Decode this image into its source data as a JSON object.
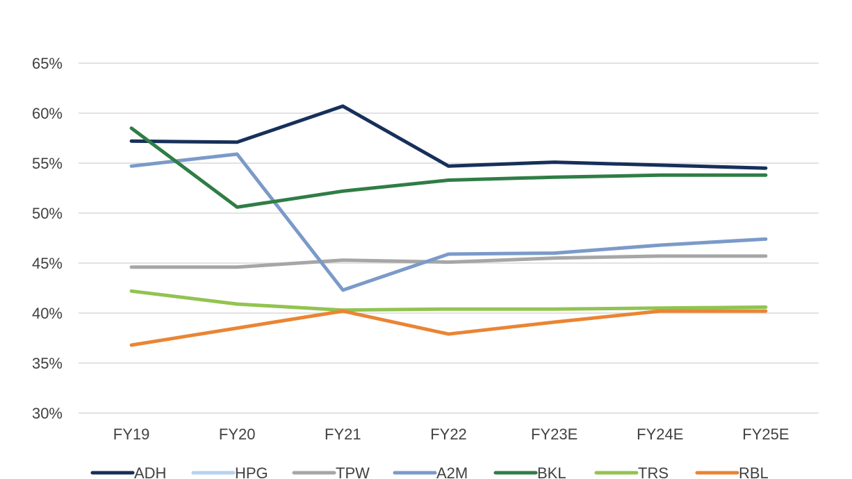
{
  "chart_data": {
    "type": "line",
    "title_fragment": "",
    "categories": [
      "FY19",
      "FY20",
      "FY21",
      "FY22",
      "FY23E",
      "FY24E",
      "FY25E"
    ],
    "ylim": [
      30,
      65
    ],
    "yticks": [
      "65%",
      "60%",
      "55%",
      "50%",
      "45%",
      "40%",
      "35%",
      "30%"
    ],
    "ytick_values": [
      65,
      60,
      55,
      50,
      45,
      40,
      35,
      30
    ],
    "grid": true,
    "legend_position": "bottom",
    "series": [
      {
        "name": "ADH",
        "color": "#17305a",
        "values": [
          57.2,
          57.1,
          60.7,
          54.7,
          55.1,
          54.8,
          54.5
        ]
      },
      {
        "name": "HPG",
        "color": "#b5d3f0",
        "values": [
          null,
          null,
          null,
          null,
          null,
          null,
          null
        ]
      },
      {
        "name": "TPW",
        "color": "#a6a6a6",
        "values": [
          44.6,
          44.6,
          45.3,
          45.1,
          45.5,
          45.7,
          45.7
        ]
      },
      {
        "name": "A2M",
        "color": "#7b9ac8",
        "values": [
          54.7,
          55.9,
          42.3,
          45.9,
          46.0,
          46.8,
          47.4
        ]
      },
      {
        "name": "BKL",
        "color": "#2f7d45",
        "values": [
          58.5,
          50.6,
          52.2,
          53.3,
          53.6,
          53.8,
          53.8
        ]
      },
      {
        "name": "TRS",
        "color": "#92c350",
        "values": [
          42.2,
          40.9,
          40.3,
          40.4,
          40.4,
          40.5,
          40.6
        ]
      },
      {
        "name": "RBL",
        "color": "#e98534",
        "values": [
          36.8,
          38.5,
          40.2,
          37.9,
          39.1,
          40.2,
          40.2
        ]
      }
    ]
  }
}
